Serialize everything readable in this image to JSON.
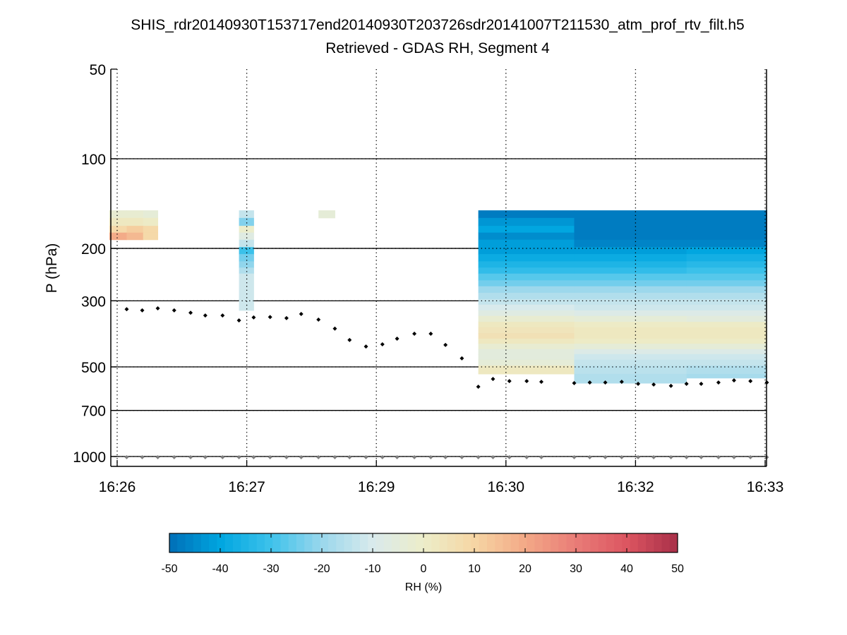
{
  "chart_data": {
    "type": "heatmap",
    "title": "SHIS_rdr20140930T153717end20140930T203726sdr20141007T211530_atm_prof_rtv_filt.h5",
    "subtitle": "Retrieved - GDAS RH, Segment 4",
    "ylabel": "P (hPa)",
    "xlabel": "",
    "y_scale": "log",
    "ylim": [
      50,
      1080
    ],
    "y_reversed": true,
    "xlim_minutes_after_16h": [
      25.93,
      33.52
    ],
    "y_ticks": [
      50,
      100,
      200,
      300,
      500,
      700,
      1000
    ],
    "y_tick_labels": [
      "50",
      "100",
      "200",
      "300",
      "500",
      "700",
      "1000"
    ],
    "x_ticks": [
      26.0,
      27.5,
      29.0,
      30.5,
      32.0,
      33.5
    ],
    "x_tick_labels": [
      "16:26",
      "16:27",
      "16:29",
      "16:30",
      "16:32",
      "16:33"
    ],
    "grid": "dotted",
    "colorbar": {
      "label": "RH (%)",
      "range": [
        -50,
        50
      ],
      "ticks": [
        -50,
        -40,
        -30,
        -20,
        -10,
        0,
        10,
        20,
        30,
        40,
        50
      ],
      "tick_labels": [
        "-50",
        "-40",
        "-30",
        "-20",
        "-10",
        "0",
        "10",
        "20",
        "30",
        "40",
        "50"
      ],
      "steps": 64,
      "colormap": [
        [
          -50,
          "#006fb7"
        ],
        [
          -40,
          "#00a6e0"
        ],
        [
          -30,
          "#3ec2eb"
        ],
        [
          -20,
          "#9ad7ec"
        ],
        [
          -10,
          "#d9eaec"
        ],
        [
          0,
          "#ecedc9"
        ],
        [
          10,
          "#f6d6a4"
        ],
        [
          20,
          "#f3a987"
        ],
        [
          30,
          "#e97c77"
        ],
        [
          40,
          "#dc5561"
        ],
        [
          50,
          "#a82f48"
        ]
      ]
    },
    "cells": [
      {
        "t_edges": [
          25.91,
          26.11,
          26.3,
          26.47
        ],
        "p_edges": [
          149,
          158,
          168,
          177,
          187
        ],
        "values": [
          [
            -2,
            -2,
            -4
          ],
          [
            3,
            2,
            0
          ],
          [
            9,
            12,
            8
          ],
          [
            20,
            16,
            9
          ]
        ]
      },
      {
        "t_edges": [
          27.41,
          27.58
        ],
        "p_edges": [
          149,
          158,
          168,
          177,
          187,
          198,
          209,
          221,
          232,
          243,
          323
        ],
        "values": [
          [
            -14
          ],
          [
            -22
          ],
          [
            -1
          ],
          [
            -7
          ],
          [
            -14
          ],
          [
            -30
          ],
          [
            -24
          ],
          [
            -21
          ],
          [
            -16
          ],
          [
            -11
          ]
        ]
      },
      {
        "t_edges": [
          28.33,
          28.52
        ],
        "p_edges": [
          149,
          158
        ],
        "values": [
          [
            -4
          ]
        ]
      }
    ],
    "block": {
      "p_edges": [
        149,
        158,
        168,
        177,
        187,
        198,
        209,
        221,
        232,
        243,
        256,
        268,
        282,
        296,
        309,
        323,
        337,
        353,
        368,
        385,
        402,
        418,
        436,
        453,
        473,
        495,
        528,
        567
      ],
      "groups": [
        {
          "t_edges": [
            30.18,
            31.29
          ],
          "p_bottom": 528,
          "values": [
            -48,
            -43,
            -40,
            -44,
            -42,
            -41,
            -38,
            -35,
            -32,
            -28,
            -25,
            -20,
            -16,
            -13,
            -10,
            -7,
            -3,
            2,
            4,
            5,
            2,
            -3,
            -5,
            -6,
            -4,
            2,
            null
          ]
        },
        {
          "t_edges": [
            31.29,
            32.59
          ],
          "p_bottom": 567,
          "values": [
            -48,
            -48,
            -48,
            -48,
            -46,
            -42,
            -38,
            -35,
            -32,
            -28,
            -25,
            -20,
            -16,
            -13,
            -11,
            -8,
            -4,
            1,
            3,
            3,
            1,
            -4,
            -8,
            -11,
            -13,
            -15,
            -17
          ]
        },
        {
          "t_edges": [
            32.59,
            33.52
          ],
          "p_bottom": 545,
          "values": [
            -48,
            -48,
            -48,
            -48,
            -46,
            -40,
            -37,
            -34,
            -31,
            -27,
            -24,
            -19,
            -17,
            -14,
            -11,
            -9,
            -5,
            1,
            3,
            3,
            1,
            -4,
            -8,
            -12,
            -14,
            -16,
            -18
          ]
        }
      ]
    },
    "series": [
      {
        "name": "black-markers",
        "color": "#000000",
        "t": [
          26.11,
          26.29,
          26.47,
          26.66,
          26.85,
          27.02,
          27.22,
          27.41,
          27.58,
          27.77,
          27.96,
          28.13,
          28.33,
          28.52,
          28.69,
          28.88,
          29.07,
          29.24,
          29.44,
          29.63,
          29.8,
          29.99,
          30.18,
          30.35,
          30.54,
          30.74,
          30.91,
          31.29,
          31.47,
          31.65,
          31.84,
          32.03,
          32.21,
          32.41,
          32.59,
          32.76,
          32.96,
          33.14,
          33.33,
          33.52
        ],
        "p": [
          320,
          323,
          318,
          323,
          329,
          336,
          336,
          349,
          341,
          340,
          343,
          332,
          347,
          372,
          406,
          427,
          420,
          402,
          387,
          387,
          422,
          468,
          583,
          549,
          558,
          558,
          561,
          567,
          564,
          564,
          561,
          570,
          573,
          579,
          570,
          570,
          564,
          555,
          558,
          564
        ]
      },
      {
        "name": "grey-markers",
        "color": "#808080",
        "t": [
          26.11,
          26.29,
          26.47,
          26.66,
          26.85,
          27.02,
          27.22,
          27.41,
          27.58,
          27.77,
          27.96,
          28.13,
          28.33,
          28.52,
          28.69,
          28.88,
          29.07,
          29.24,
          29.44,
          29.63,
          29.8,
          29.99,
          30.18,
          30.35,
          30.54,
          30.74,
          30.91,
          31.29,
          31.47,
          31.65,
          31.84,
          32.03,
          32.21,
          32.41,
          32.59,
          32.76,
          32.96,
          33.14,
          33.33,
          33.52
        ],
        "p": [
          1005,
          1005,
          1005,
          1005,
          1005,
          1005,
          1005,
          1005,
          1005,
          1005,
          1005,
          1005,
          1005,
          1005,
          1005,
          1005,
          1005,
          1005,
          1005,
          1005,
          1005,
          1005,
          1005,
          1005,
          1005,
          1005,
          1005,
          1005,
          1005,
          1005,
          1005,
          1005,
          1005,
          1005,
          1005,
          1005,
          1005,
          1005,
          1005,
          1005
        ]
      }
    ]
  }
}
